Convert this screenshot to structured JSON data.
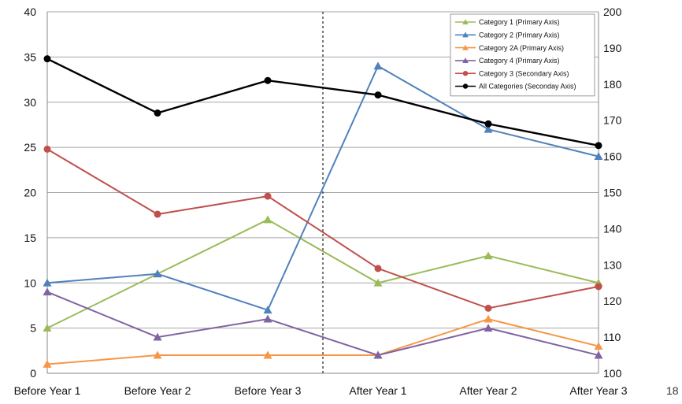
{
  "page_number": "18",
  "chart_data": {
    "type": "line",
    "categories": [
      "Before Year 1",
      "Before Year 2",
      "Before Year 3",
      "After Year 1",
      "After Year 2",
      "After Year 3"
    ],
    "y_primary": {
      "range": [
        0,
        40
      ],
      "ticks": [
        0,
        5,
        10,
        15,
        20,
        25,
        30,
        35,
        40
      ]
    },
    "y_secondary": {
      "range": [
        100,
        200
      ],
      "ticks": [
        100,
        110,
        120,
        130,
        140,
        150,
        160,
        170,
        180,
        190,
        200
      ]
    },
    "grid": "horizontal",
    "divider": "dashed vertical line between Before Year 3 and After Year 1",
    "legend_position": "top-right",
    "series": [
      {
        "name": "Category 1 (Primary Axis)",
        "axis": "primary",
        "color": "#9bbb59",
        "marker": "triangle",
        "values": [
          5,
          11,
          17,
          10,
          13,
          10
        ]
      },
      {
        "name": "Category 2 (Primary Axis)",
        "axis": "primary",
        "color": "#4f81bd",
        "marker": "triangle",
        "values": [
          10,
          11,
          7,
          34,
          27,
          24
        ]
      },
      {
        "name": "Category 2A (Primary Axis)",
        "axis": "primary",
        "color": "#f79646",
        "marker": "triangle",
        "values": [
          1,
          2,
          2,
          2,
          6,
          3
        ]
      },
      {
        "name": "Category 4 (Primary Axis)",
        "axis": "primary",
        "color": "#8064a2",
        "marker": "triangle",
        "values": [
          9,
          4,
          6,
          2,
          5,
          2
        ]
      },
      {
        "name": "Category 3 (Secondary Axis)",
        "axis": "secondary",
        "color": "#c0504d",
        "marker": "circle",
        "values": [
          162,
          144,
          149,
          129,
          118,
          124
        ]
      },
      {
        "name": "All Categories (Seconday Axis)",
        "axis": "secondary",
        "color": "#000000",
        "marker": "circle",
        "values": [
          187,
          172,
          181,
          177,
          169,
          163
        ]
      }
    ]
  }
}
